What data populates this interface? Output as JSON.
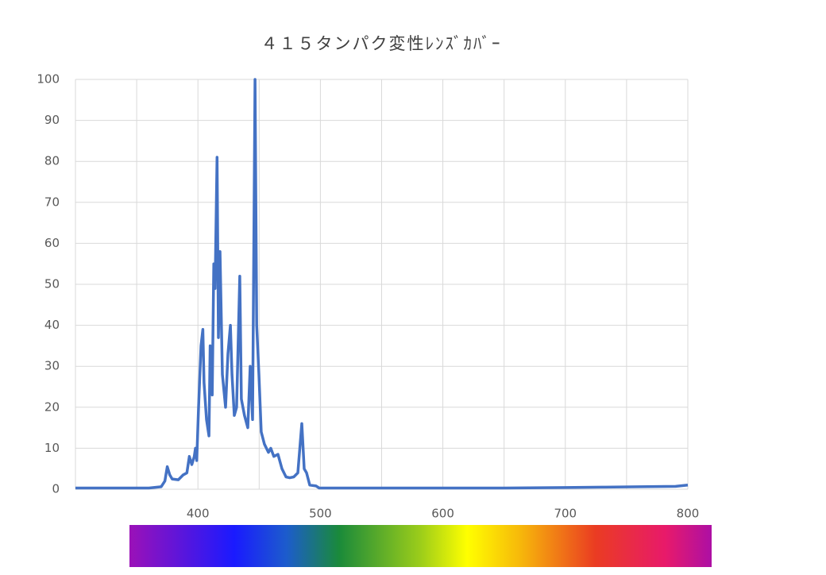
{
  "chart_data": {
    "type": "line",
    "title": "４１５タンパク変性ﾚﾝｽﾞｶﾊﾞｰ",
    "x": [
      300,
      320,
      340,
      360,
      370,
      373,
      375,
      377,
      379,
      384,
      388,
      391,
      393,
      395,
      397,
      398,
      399,
      400.5,
      402.5,
      404,
      405,
      407,
      409,
      410,
      411.7,
      413,
      414,
      415.6,
      416.7,
      418,
      420,
      422.6,
      424.5,
      426.5,
      427.8,
      429.7,
      431.6,
      434.2,
      435.5,
      438,
      440.7,
      442.7,
      444.6,
      446.6,
      448,
      449.8,
      451.7,
      454.3,
      457.6,
      459.5,
      462,
      465.4,
      468.6,
      471.9,
      475,
      478.3,
      481.6,
      484.8,
      486.8,
      488.7,
      491.3,
      496.5,
      499,
      520,
      550,
      600,
      650,
      700,
      730,
      760,
      790,
      800
    ],
    "series": [
      {
        "name": "415",
        "color": "#4472c4",
        "values": [
          0.3,
          0.3,
          0.3,
          0.3,
          0.6,
          2,
          5.5,
          3.5,
          2.5,
          2.3,
          3.5,
          4,
          8,
          6,
          8,
          10,
          7,
          20,
          35,
          39,
          26,
          17,
          13,
          35,
          23,
          55,
          49,
          81,
          37,
          58,
          28,
          20,
          33,
          40,
          28,
          18,
          20,
          52,
          22,
          18,
          15,
          30,
          17,
          100,
          40,
          28,
          14,
          11,
          9,
          10,
          8,
          8.5,
          5,
          3,
          2.8,
          3,
          4,
          16,
          5,
          4,
          1,
          0.8,
          0.3,
          0.3,
          0.3,
          0.3,
          0.3,
          0.4,
          0.5,
          0.6,
          0.7,
          1
        ]
      }
    ],
    "xlim": [
      300,
      800
    ],
    "xticks": [
      400,
      500,
      600,
      700,
      800
    ],
    "ylim": [
      0,
      100
    ],
    "yticks": [
      0,
      10,
      20,
      30,
      40,
      50,
      60,
      70,
      80,
      90,
      100
    ],
    "grid": true
  }
}
